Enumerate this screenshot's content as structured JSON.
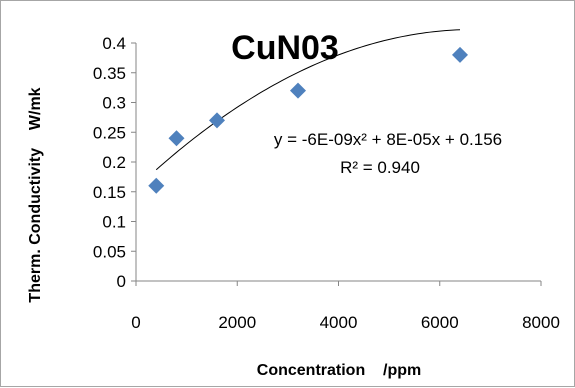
{
  "chart_data": {
    "type": "scatter",
    "title": "CuN03",
    "xlabel": "Concentration    /ppm",
    "ylabel": "Therm. Conductivity    W/mk",
    "xlim": [
      0,
      8000
    ],
    "ylim": [
      0,
      0.4
    ],
    "x_ticks": [
      0,
      2000,
      4000,
      6000,
      8000
    ],
    "y_ticks": [
      0,
      0.05,
      0.1,
      0.15,
      0.2,
      0.25,
      0.3,
      0.35,
      0.4
    ],
    "x_tick_labels": [
      "0",
      "2000",
      "4000",
      "6000",
      "8000"
    ],
    "y_tick_labels": [
      "0",
      "0.05",
      "0.1",
      "0.15",
      "0.2",
      "0.25",
      "0.3",
      "0.35",
      "0.4"
    ],
    "grid": false,
    "legend": "none",
    "series": [
      {
        "marker": "diamond",
        "color": "#4f81bd",
        "x": [
          400,
          800,
          1600,
          3200,
          6400
        ],
        "y": [
          0.16,
          0.24,
          0.27,
          0.32,
          0.38
        ]
      }
    ],
    "trendline": {
      "type": "polynomial",
      "order": 2,
      "coefficients": [
        -6e-09,
        8e-05,
        0.156
      ],
      "x_range": [
        400,
        6400
      ],
      "color": "#000000",
      "equation_text": "y = -6E-09x² + 8E-05x + 0.156",
      "r2_text": "R² = 0.940"
    }
  }
}
